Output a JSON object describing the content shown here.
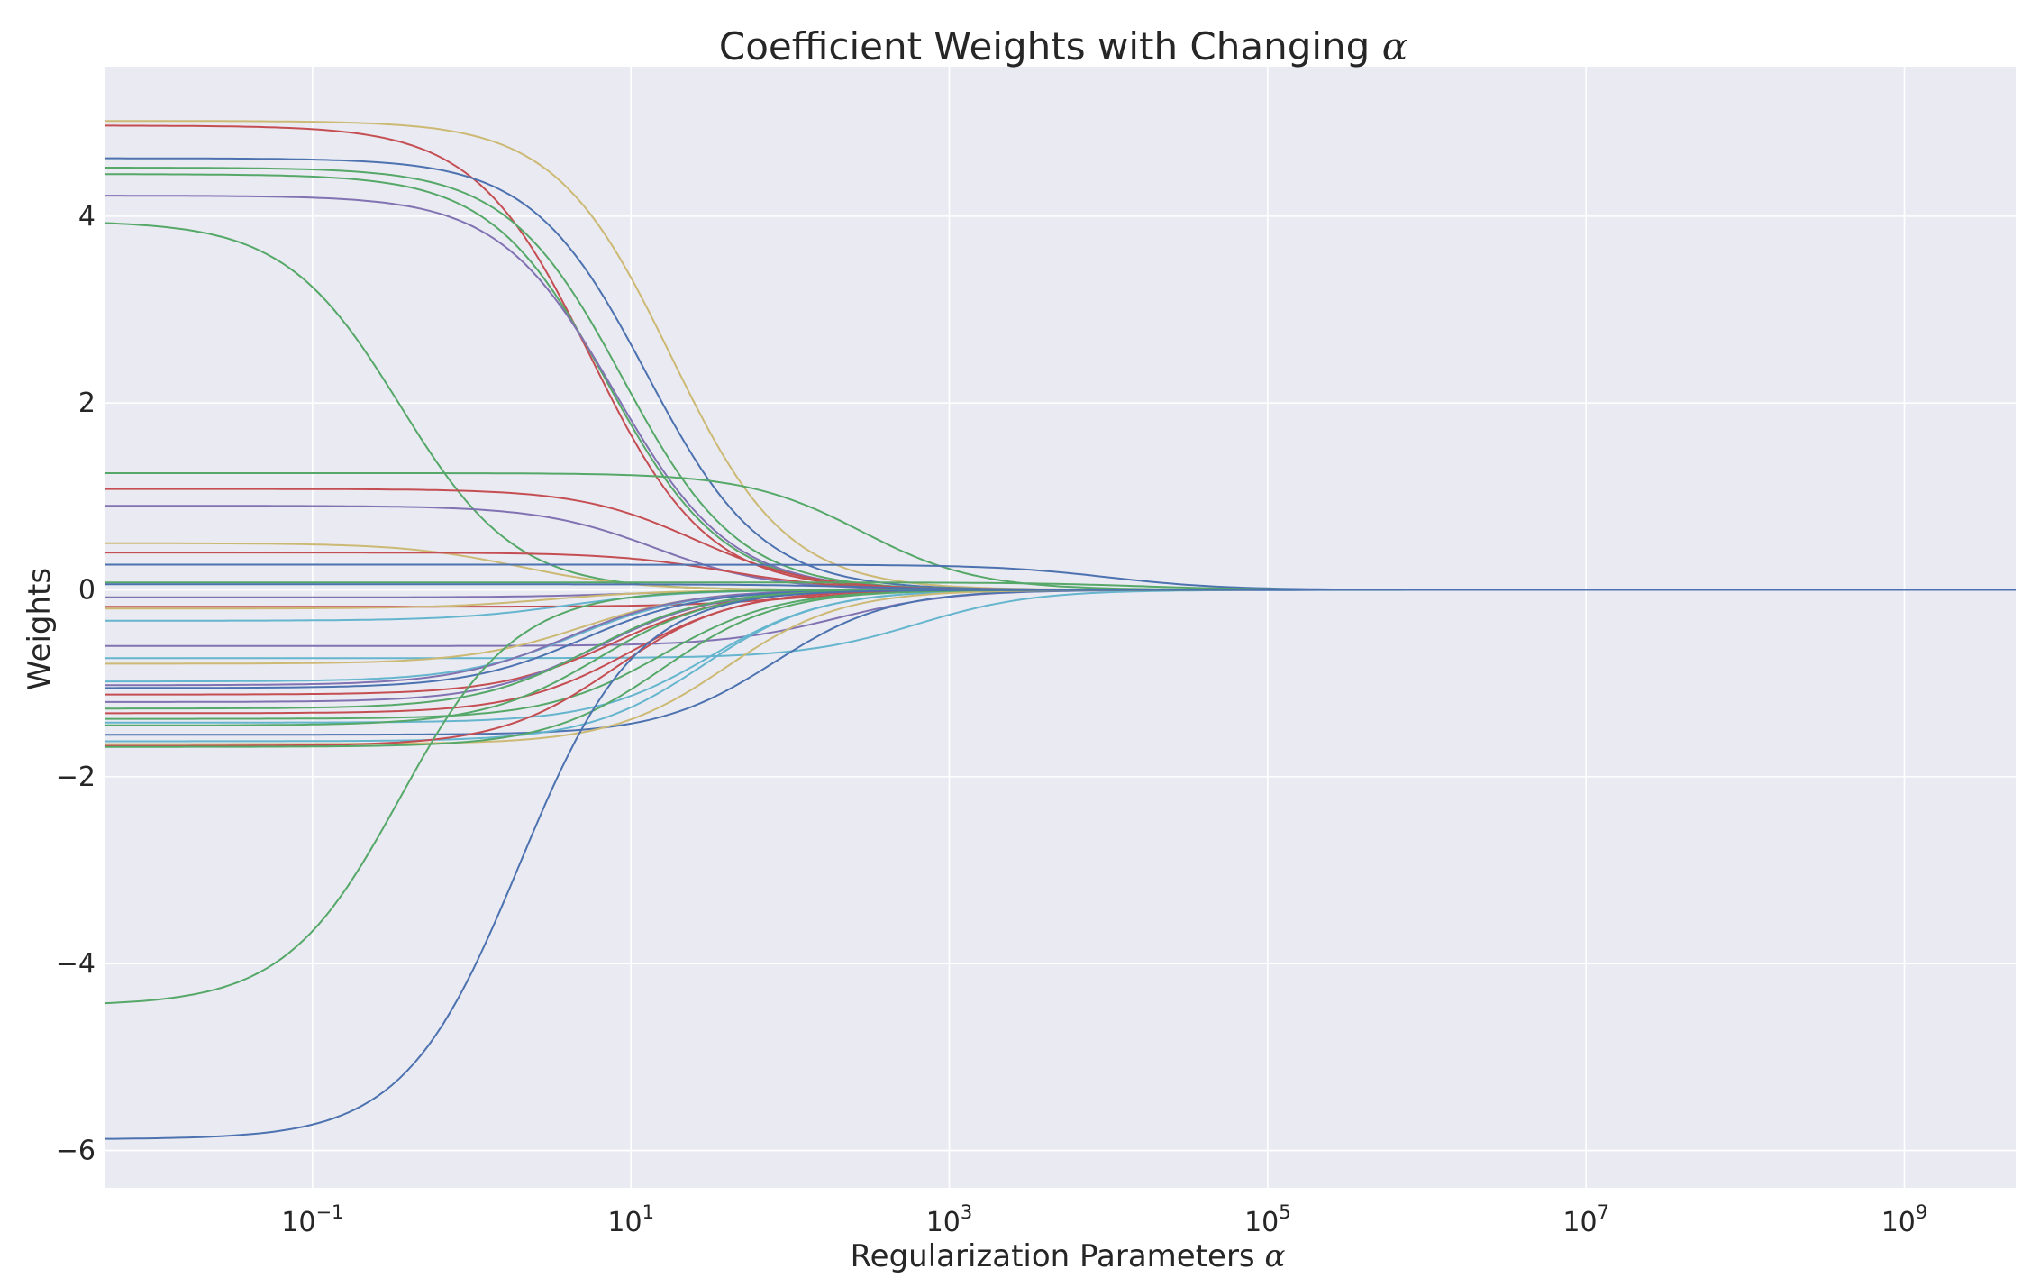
{
  "chart_data": {
    "type": "line",
    "title": "Coefficient Weights with Changing",
    "title_symbol": "α",
    "xlabel": "Regularization Parameters",
    "xlabel_symbol": "α",
    "ylabel": "Weights",
    "xscale": "log",
    "xlim": [
      0.005,
      5000000000
    ],
    "ylim": [
      -6.4,
      5.6
    ],
    "grid": true,
    "xtick_base": "10",
    "xticks": [
      {
        "value": 0.1,
        "exp": "−1"
      },
      {
        "value": 10,
        "exp": "1"
      },
      {
        "value": 1000,
        "exp": "3"
      },
      {
        "value": 100000,
        "exp": "5"
      },
      {
        "value": 10000000,
        "exp": "7"
      },
      {
        "value": 1000000000,
        "exp": "9"
      }
    ],
    "yticks": [
      {
        "value": 4,
        "label": "4"
      },
      {
        "value": 2,
        "label": "2"
      },
      {
        "value": 0,
        "label": "0"
      },
      {
        "value": -2,
        "label": "−2"
      },
      {
        "value": -4,
        "label": "−4"
      },
      {
        "value": -6,
        "label": "−6"
      }
    ],
    "colors": {
      "background": "#eaeaf2",
      "grid": "#ffffff",
      "palette": [
        "#4c72b0",
        "#55a868",
        "#c44e52",
        "#8172b2",
        "#ccb974",
        "#64b5cd"
      ]
    },
    "series": [
      {
        "w0": 5.02,
        "mid_exp": 1.25,
        "color": "#ccb974"
      },
      {
        "w0": 4.97,
        "mid_exp": 0.75,
        "color": "#c44e52"
      },
      {
        "w0": 4.62,
        "mid_exp": 1.1,
        "color": "#4c72b0"
      },
      {
        "w0": 4.52,
        "mid_exp": 0.95,
        "color": "#55a868"
      },
      {
        "w0": 4.45,
        "mid_exp": 0.85,
        "color": "#55a868"
      },
      {
        "w0": 4.22,
        "mid_exp": 0.9,
        "color": "#8172b2"
      },
      {
        "w0": 3.95,
        "mid_exp": -0.45,
        "color": "#55a868"
      },
      {
        "w0": 1.25,
        "mid_exp": 2.45,
        "color": "#55a868"
      },
      {
        "w0": 1.08,
        "mid_exp": 1.4,
        "color": "#c44e52"
      },
      {
        "w0": 0.9,
        "mid_exp": 1.15,
        "color": "#8172b2"
      },
      {
        "w0": 0.5,
        "mid_exp": 0.3,
        "color": "#ccb974"
      },
      {
        "w0": 0.4,
        "mid_exp": 1.6,
        "color": "#c44e52"
      },
      {
        "w0": 0.27,
        "mid_exp": 4.0,
        "color": "#4c72b0"
      },
      {
        "w0": 0.08,
        "mid_exp": 4.2,
        "color": "#55a868"
      },
      {
        "w0": 0.06,
        "mid_exp": 2.5,
        "color": "#4c72b0"
      },
      {
        "w0": -0.08,
        "mid_exp": 1.0,
        "color": "#8172b2"
      },
      {
        "w0": -0.18,
        "mid_exp": 2.0,
        "color": "#c44e52"
      },
      {
        "w0": -0.2,
        "mid_exp": 0.5,
        "color": "#ccb974"
      },
      {
        "w0": -0.33,
        "mid_exp": 0.6,
        "color": "#64b5cd"
      },
      {
        "w0": -0.6,
        "mid_exp": 2.3,
        "color": "#8172b2"
      },
      {
        "w0": -0.73,
        "mid_exp": 2.8,
        "color": "#64b5cd"
      },
      {
        "w0": -0.79,
        "mid_exp": 0.7,
        "color": "#ccb974"
      },
      {
        "w0": -0.98,
        "mid_exp": 0.65,
        "color": "#64b5cd"
      },
      {
        "w0": -1.02,
        "mid_exp": 0.6,
        "color": "#8172b2"
      },
      {
        "w0": -1.05,
        "mid_exp": 0.7,
        "color": "#4c72b0"
      },
      {
        "w0": -1.12,
        "mid_exp": 0.9,
        "color": "#c44e52"
      },
      {
        "w0": -1.2,
        "mid_exp": 0.8,
        "color": "#8172b2"
      },
      {
        "w0": -1.27,
        "mid_exp": 0.75,
        "color": "#55a868"
      },
      {
        "w0": -1.32,
        "mid_exp": 1.0,
        "color": "#c44e52"
      },
      {
        "w0": -1.38,
        "mid_exp": 1.2,
        "color": "#55a868"
      },
      {
        "w0": -1.42,
        "mid_exp": 1.5,
        "color": "#64b5cd"
      },
      {
        "w0": -1.45,
        "mid_exp": 0.8,
        "color": "#55a868"
      },
      {
        "w0": -1.55,
        "mid_exp": 1.9,
        "color": "#4c72b0"
      },
      {
        "w0": -1.62,
        "mid_exp": 1.45,
        "color": "#64b5cd"
      },
      {
        "w0": -1.65,
        "mid_exp": 1.6,
        "color": "#ccb974"
      },
      {
        "w0": -1.67,
        "mid_exp": 0.9,
        "color": "#c44e52"
      },
      {
        "w0": -1.68,
        "mid_exp": 1.2,
        "color": "#55a868"
      },
      {
        "w0": -4.45,
        "mid_exp": -0.45,
        "color": "#55a868"
      },
      {
        "w0": -5.88,
        "mid_exp": 0.3,
        "color": "#4c72b0"
      }
    ]
  }
}
